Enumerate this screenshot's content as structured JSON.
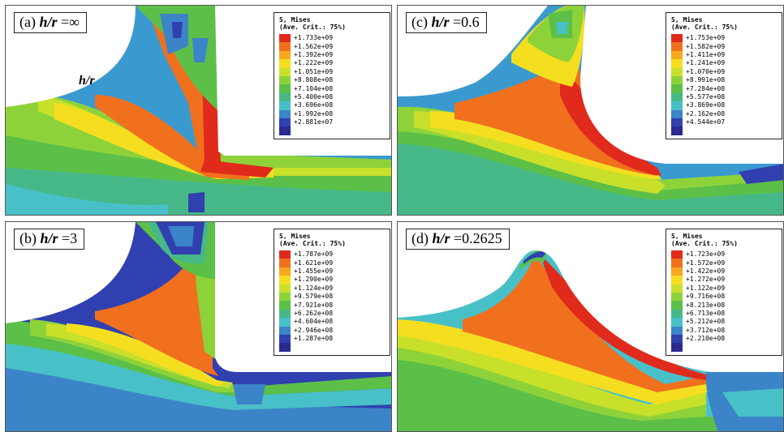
{
  "legend_colors": [
    "#e02a1c",
    "#f0701e",
    "#f5a81e",
    "#f5de20",
    "#c8e02a",
    "#8ed23a",
    "#5cc048",
    "#46b888",
    "#48c0c8",
    "#3c84c8",
    "#3040b0",
    "#2a2a90"
  ],
  "panels": [
    {
      "id": "a",
      "caption_prefix": "(a) ",
      "caption_var": "h/r",
      "caption_value": " =∞",
      "inner_label": "h/r",
      "legend_title": "S, Mises",
      "legend_subtitle": "(Ave. Crit.: 75%)",
      "values": [
        "+1.733e+09",
        "+1.562e+09",
        "+1.392e+09",
        "+1.222e+09",
        "+1.051e+09",
        "+8.808e+08",
        "+7.104e+08",
        "+5.400e+08",
        "+3.696e+08",
        "+1.992e+08",
        "+2.881e+07"
      ]
    },
    {
      "id": "c",
      "caption_prefix": "(c) ",
      "caption_var": "h/r",
      "caption_value": " =0.6",
      "legend_title": "S, Mises",
      "legend_subtitle": "(Ave. Crit.: 75%)",
      "values": [
        "+1.753e+09",
        "+1.582e+09",
        "+1.411e+09",
        "+1.241e+09",
        "+1.070e+09",
        "+8.991e+08",
        "+7.284e+08",
        "+5.577e+08",
        "+3.869e+08",
        "+2.162e+08",
        "+4.544e+07"
      ]
    },
    {
      "id": "b",
      "caption_prefix": "(b) ",
      "caption_var": "h/r",
      "caption_value": " =3",
      "legend_title": "S, Mises",
      "legend_subtitle": "(Ave. Crit.: 75%)",
      "values": [
        "+1.787e+09",
        "+1.621e+09",
        "+1.455e+09",
        "+1.290e+09",
        "+1.124e+09",
        "+9.579e+08",
        "+7.921e+08",
        "+6.262e+08",
        "+4.604e+08",
        "+2.946e+08",
        "+1.287e+08"
      ]
    },
    {
      "id": "d",
      "caption_prefix": "(d) ",
      "caption_var": "h/r",
      "caption_value": " =0.2625",
      "legend_title": "S, Mises",
      "legend_subtitle": "(Ave. Crit.: 75%)",
      "values": [
        "+1.723e+09",
        "+1.572e+09",
        "+1.422e+09",
        "+1.272e+09",
        "+1.122e+09",
        "+9.716e+08",
        "+8.213e+08",
        "+6.713e+08",
        "+5.212e+08",
        "+3.712e+08",
        "+2.210e+08"
      ]
    }
  ]
}
